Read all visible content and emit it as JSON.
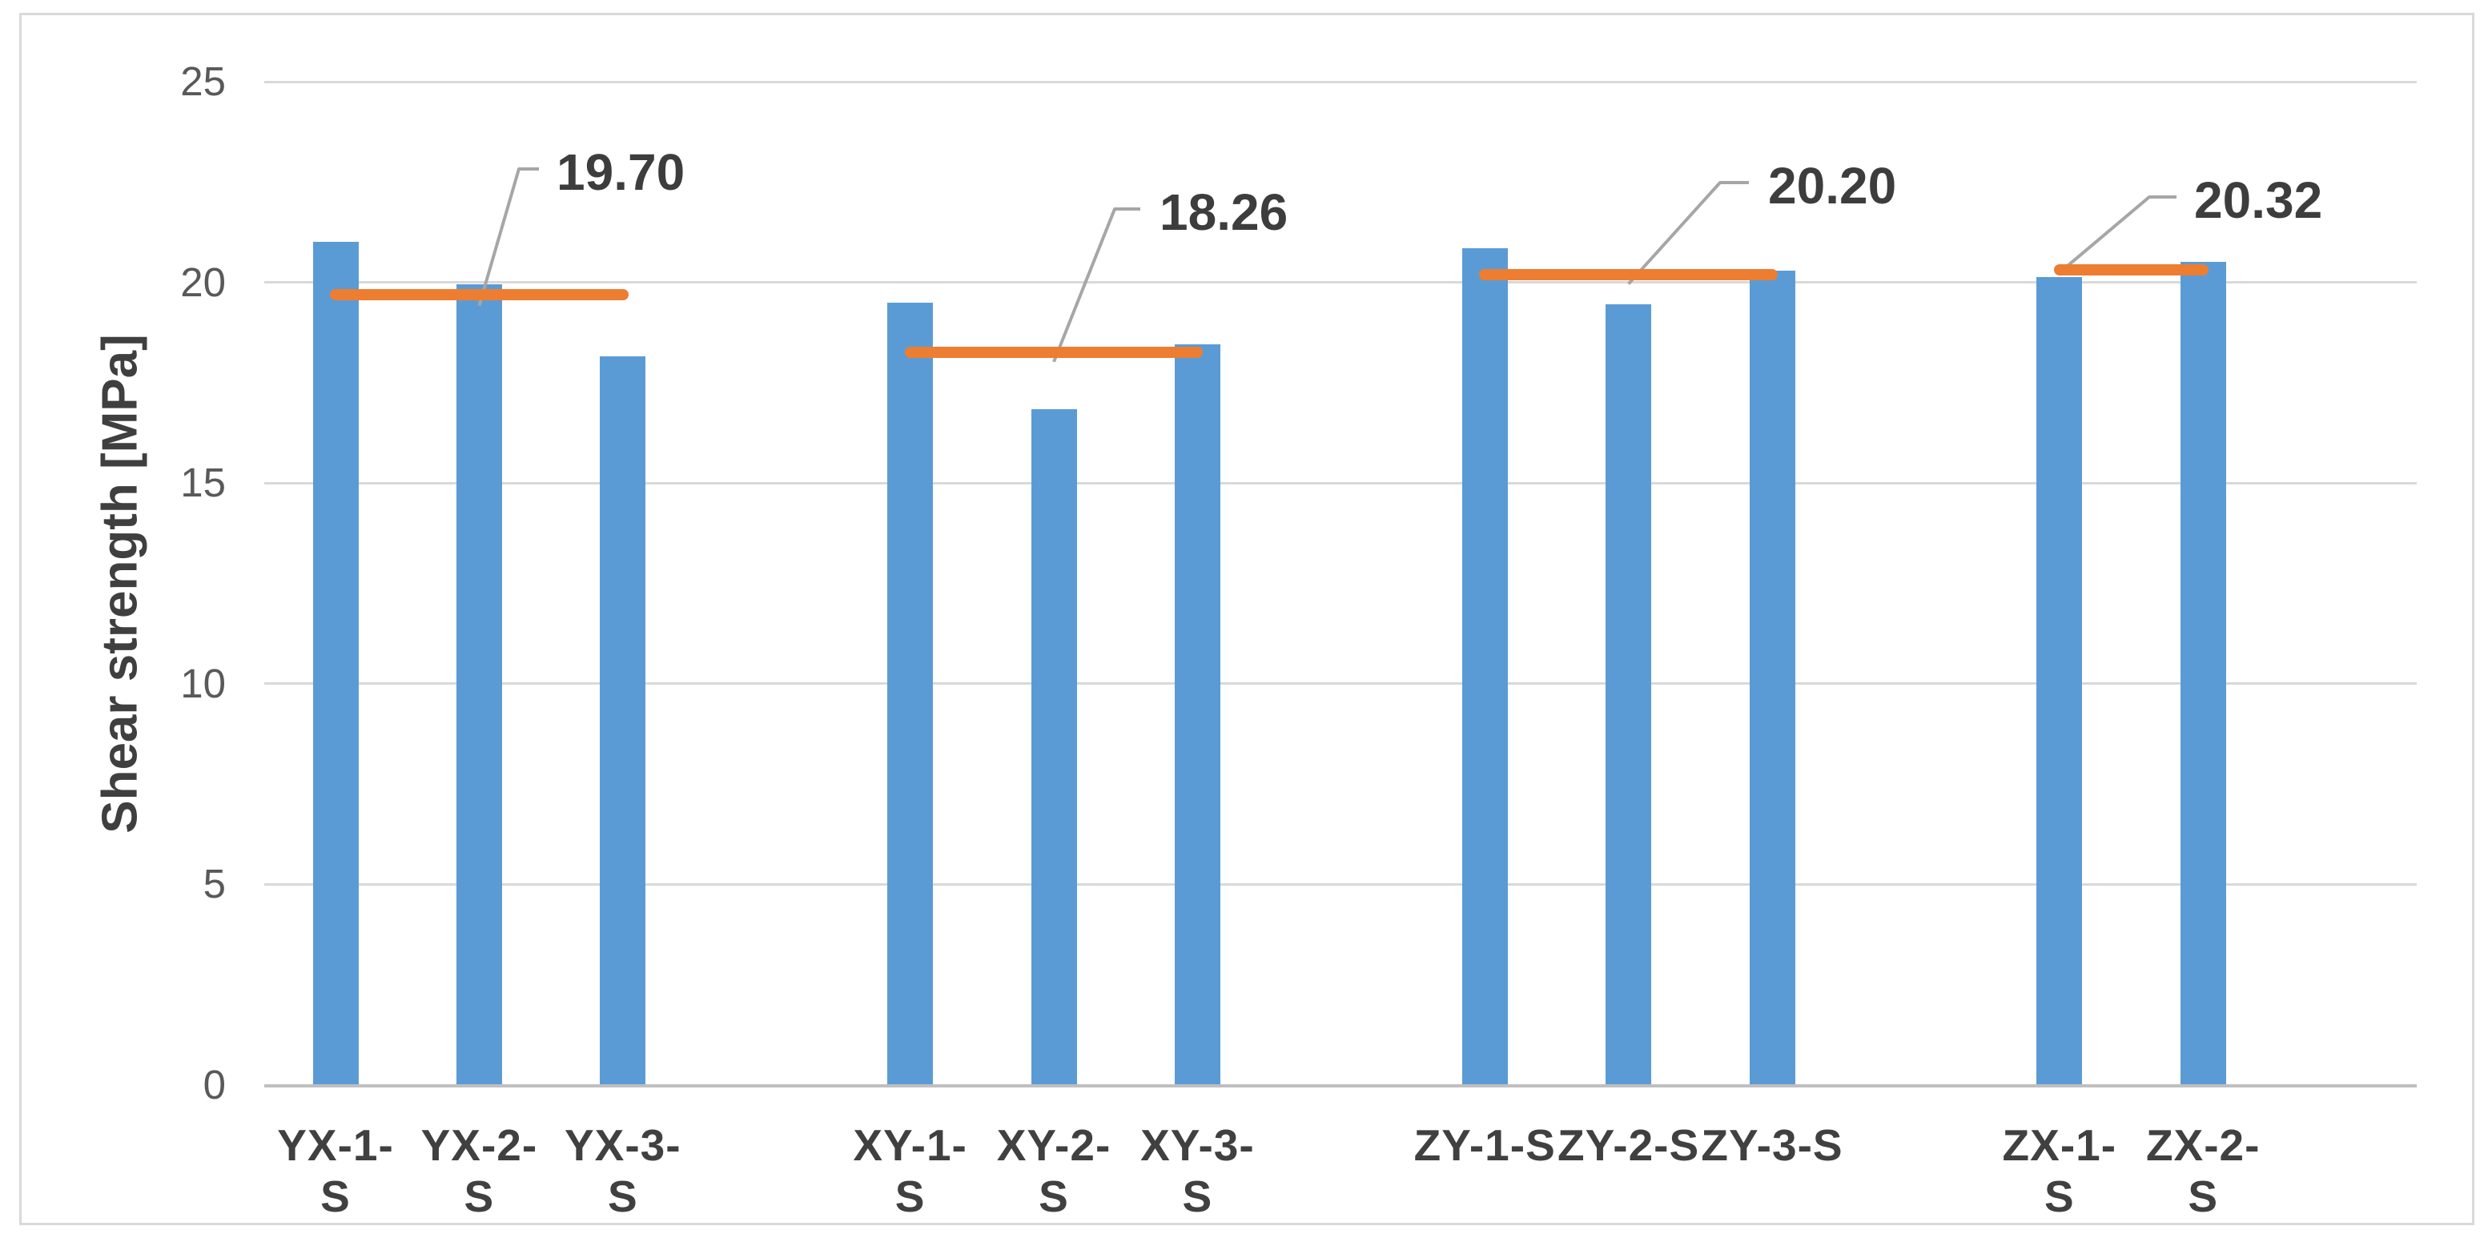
{
  "chart_data": {
    "type": "bar",
    "title": "",
    "ylabel": "Shear strength [MPa]",
    "xlabel": "",
    "ylim": [
      0,
      25
    ],
    "yticks": [
      0,
      5,
      10,
      15,
      20,
      25
    ],
    "grid": true,
    "legend": false,
    "bar_color": "#5B9BD5",
    "avg_line_color": "#ED7D31",
    "groups": [
      {
        "categories": [
          "YX-1-S",
          "YX-2-S",
          "YX-3-S"
        ],
        "values": [
          21.0,
          19.95,
          18.15
        ],
        "average": 19.7,
        "average_label": "19.70",
        "callout_bar_index": 1
      },
      {
        "categories": [
          "XY-1-S",
          "XY-2-S",
          "XY-3-S"
        ],
        "values": [
          19.5,
          16.83,
          18.45
        ],
        "average": 18.26,
        "average_label": "18.26",
        "callout_bar_index": 1
      },
      {
        "categories": [
          "ZY-1-S",
          "ZY-2-S",
          "ZY-3-S"
        ],
        "values": [
          20.85,
          19.45,
          20.3
        ],
        "average": 20.2,
        "average_label": "20.20",
        "callout_bar_index": 1
      },
      {
        "categories": [
          "ZX-1-S",
          "ZX-2-S"
        ],
        "values": [
          20.13,
          20.51
        ],
        "average": 20.32,
        "average_label": "20.32",
        "callout_bar_index": 0
      }
    ]
  },
  "colors": {
    "bar": "#5B9BD5",
    "average_line": "#ED7D31",
    "gridline": "#D9D9D9",
    "axis_line": "#BFBFBF",
    "tick_text": "#595959",
    "category_text": "#404040",
    "callout_text": "#3D3D3D",
    "leader_line": "#A6A6A6",
    "figure_border": "#D9D9D9",
    "background": "#FFFFFF"
  }
}
